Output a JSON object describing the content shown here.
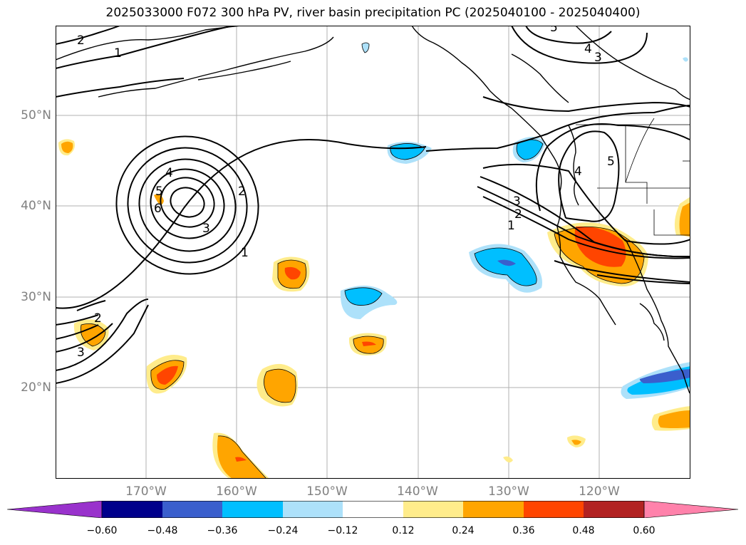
{
  "title": "2025033000 F072 300 hPa PV, river basin precipitation PC (2025040100 - 2025040400)",
  "lat_labels": [
    "50°N",
    "40°N",
    "30°N",
    "20°N"
  ],
  "lon_labels": [
    "170°W",
    "160°W",
    "150°W",
    "140°W",
    "130°W",
    "120°W"
  ],
  "colorbar": {
    "ticks": [
      "−0.60",
      "−0.48",
      "−0.36",
      "−0.24",
      "−0.12",
      "0.12",
      "0.24",
      "0.36",
      "0.48",
      "0.60"
    ],
    "colors": [
      "#9932CC",
      "#00008B",
      "#3A5FCD",
      "#00BFFF",
      "#ADE1FA",
      "#FFFFFF",
      "#FFEC8B",
      "#FFA500",
      "#FF4500",
      "#B22222",
      "#FF82AB"
    ]
  },
  "contour_labels": [
    "2",
    "1",
    "4",
    "5",
    "6",
    "3",
    "2",
    "1",
    "2",
    "3",
    "5",
    "4",
    "3",
    "4",
    "5",
    "3",
    "2",
    "1",
    "2",
    "3"
  ]
}
